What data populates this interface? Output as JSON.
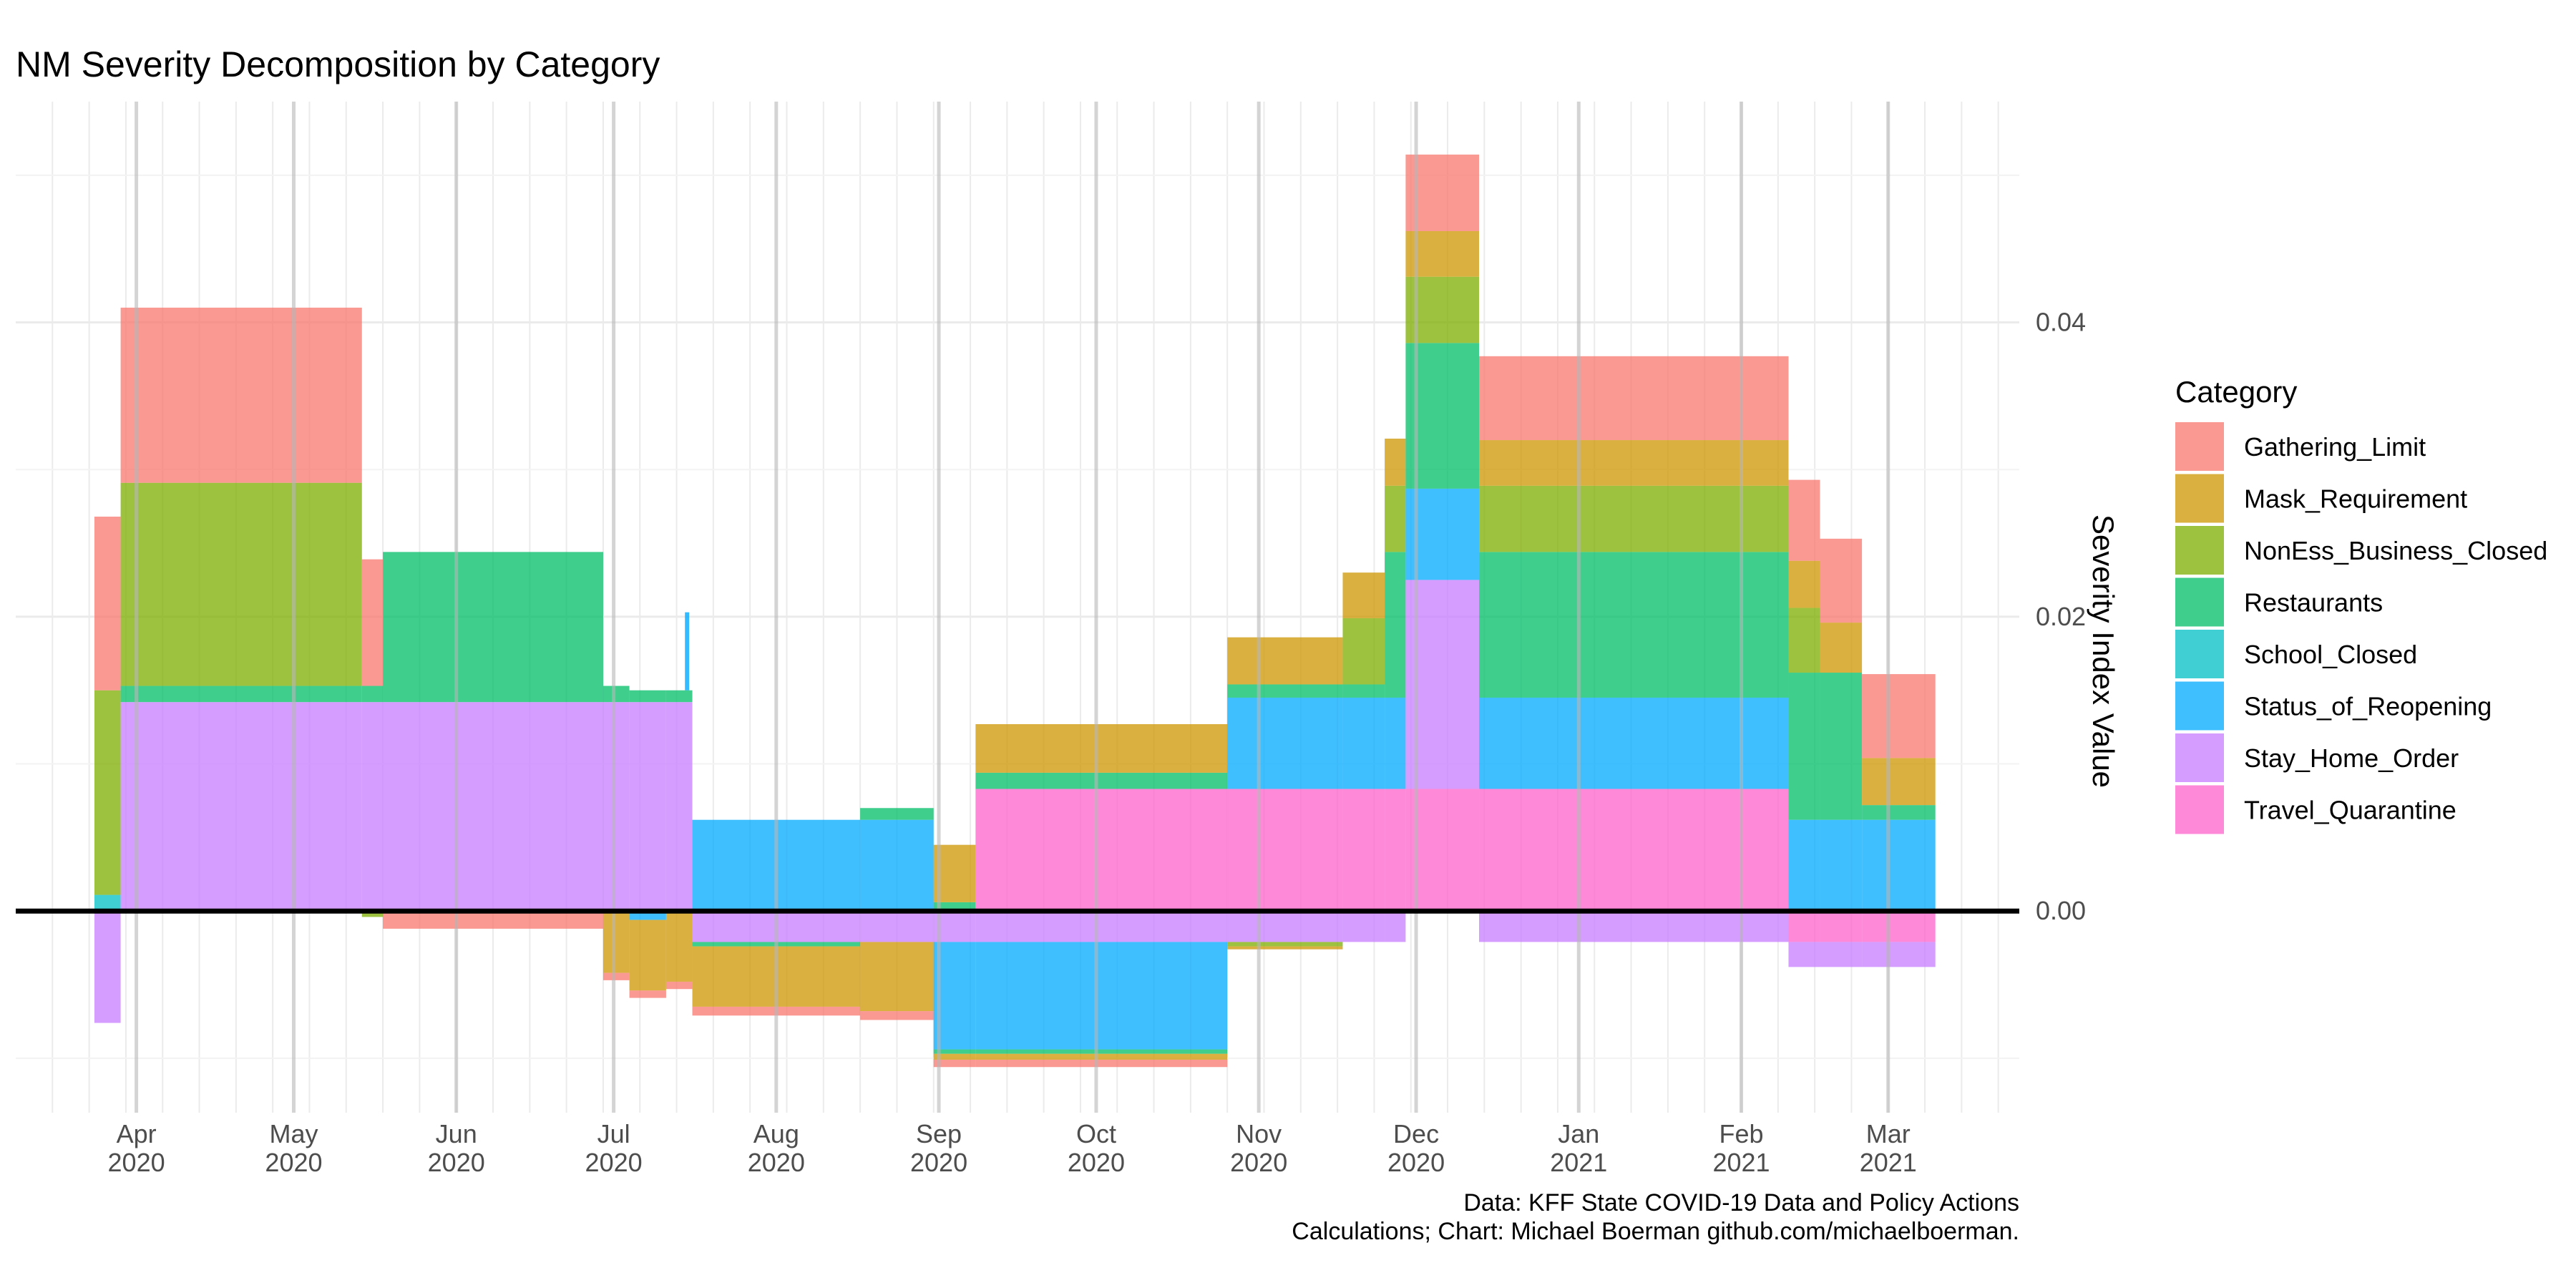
{
  "chart_data": {
    "type": "bar",
    "stacked": true,
    "diverging": true,
    "title": "NM Severity Decomposition by Category",
    "ylabel": "Severity Index Value",
    "xlabel": "",
    "y_axis_position": "right",
    "ylim": [
      -0.0137,
      0.055
    ],
    "yticks": [
      0.0,
      0.02,
      0.04
    ],
    "ytick_labels": [
      "0.00",
      "0.02",
      "0.04"
    ],
    "xlim": [
      "2020-03-09",
      "2021-03-26"
    ],
    "xticks": [
      {
        "date": "2020-04-01",
        "month": "Apr",
        "year": "2020"
      },
      {
        "date": "2020-05-01",
        "month": "May",
        "year": "2020"
      },
      {
        "date": "2020-06-01",
        "month": "Jun",
        "year": "2020"
      },
      {
        "date": "2020-07-01",
        "month": "Jul",
        "year": "2020"
      },
      {
        "date": "2020-08-01",
        "month": "Aug",
        "year": "2020"
      },
      {
        "date": "2020-09-01",
        "month": "Sep",
        "year": "2020"
      },
      {
        "date": "2020-10-01",
        "month": "Oct",
        "year": "2020"
      },
      {
        "date": "2020-11-01",
        "month": "Nov",
        "year": "2020"
      },
      {
        "date": "2020-12-01",
        "month": "Dec",
        "year": "2020"
      },
      {
        "date": "2021-01-01",
        "month": "Jan",
        "year": "2021"
      },
      {
        "date": "2021-02-01",
        "month": "Feb",
        "year": "2021"
      },
      {
        "date": "2021-03-01",
        "month": "Mar",
        "year": "2021"
      }
    ],
    "grid": true,
    "legend_position": "right",
    "legend_title": "Category",
    "categories": [
      "Gathering_Limit",
      "Mask_Requirement",
      "NonEss_Business_Closed",
      "Restaurants",
      "School_Closed",
      "Status_of_Reopening",
      "Stay_Home_Order",
      "Travel_Quarantine"
    ],
    "colors": {
      "Gathering_Limit": "#F8766D",
      "Mask_Requirement": "#CD9600",
      "NonEss_Business_Closed": "#7CAE00",
      "Restaurants": "#00BE67",
      "School_Closed": "#00BFC4",
      "Status_of_Reopening": "#00A9FF",
      "Stay_Home_Order": "#C77CFF",
      "Travel_Quarantine": "#FF61CC"
    },
    "periods": [
      {
        "start": "2020-03-24",
        "end": "2020-03-29",
        "values": {
          "School_Closed": 0.0011,
          "NonEss_Business_Closed": 0.0139,
          "Gathering_Limit": 0.0118,
          "Stay_Home_Order": -0.0076
        }
      },
      {
        "start": "2020-03-29",
        "end": "2020-05-14",
        "values": {
          "Stay_Home_Order": 0.0142,
          "Restaurants": 0.0011,
          "NonEss_Business_Closed": 0.0138,
          "Gathering_Limit": 0.0119
        }
      },
      {
        "start": "2020-05-14",
        "end": "2020-05-18",
        "values": {
          "Stay_Home_Order": 0.0142,
          "Restaurants": 0.0011,
          "Gathering_Limit": 0.0086,
          "NonEss_Business_Closed": -0.0004
        }
      },
      {
        "start": "2020-05-18",
        "end": "2020-06-29",
        "values": {
          "Stay_Home_Order": 0.0142,
          "Restaurants": 0.0102,
          "Gathering_Limit": -0.0012
        }
      },
      {
        "start": "2020-06-29",
        "end": "2020-07-04",
        "values": {
          "Stay_Home_Order": 0.0142,
          "Restaurants": 0.0011,
          "Mask_Requirement": -0.0042,
          "Gathering_Limit": -0.0005
        }
      },
      {
        "start": "2020-07-04",
        "end": "2020-07-11",
        "values": {
          "Stay_Home_Order": 0.0142,
          "Restaurants": 0.0008,
          "Status_of_Reopening": -0.0006,
          "Mask_Requirement": -0.0048,
          "Gathering_Limit": -0.0005
        }
      },
      {
        "start": "2020-07-11",
        "end": "2020-07-16",
        "values": {
          "Stay_Home_Order": 0.0142,
          "Restaurants": 0.0008,
          "Mask_Requirement": -0.0048,
          "Gathering_Limit": -0.0005
        }
      },
      {
        "start": "2020-07-16",
        "end": "2020-08-17",
        "values": {
          "Status_of_Reopening": 0.0062,
          "Stay_Home_Order": -0.0021,
          "Restaurants": -0.0003,
          "Mask_Requirement": -0.0041,
          "Gathering_Limit": -0.0006
        }
      },
      {
        "start": "2020-08-17",
        "end": "2020-08-31",
        "values": {
          "Status_of_Reopening": 0.0062,
          "Restaurants": 0.0008,
          "Stay_Home_Order": -0.0021,
          "Mask_Requirement": -0.0047,
          "Gathering_Limit": -0.0006
        }
      },
      {
        "start": "2020-08-31",
        "end": "2020-09-08",
        "values": {
          "Restaurants": 0.0006,
          "Mask_Requirement": 0.0039,
          "Stay_Home_Order": -0.0021,
          "Status_of_Reopening": -0.0073,
          "Restaurants_neg": -0.0003,
          "Mask_Requirement_neg": -0.0004,
          "Gathering_Limit": -0.0005
        }
      },
      {
        "start": "2020-09-08",
        "end": "2020-10-26",
        "values": {
          "Travel_Quarantine": 0.0083,
          "Restaurants": 0.0011,
          "Mask_Requirement": 0.0033,
          "Stay_Home_Order": -0.0021,
          "Status_of_Reopening": -0.0073,
          "Restaurants_neg": -0.0003,
          "Mask_Requirement_neg": -0.0004,
          "Gathering_Limit": -0.0005
        }
      },
      {
        "start": "2020-10-26",
        "end": "2020-11-17",
        "values": {
          "Travel_Quarantine": 0.0083,
          "Status_of_Reopening": 0.0062,
          "Restaurants": 0.0009,
          "Mask_Requirement": 0.0032,
          "Stay_Home_Order": -0.0021,
          "NonEss_Business_Closed": -0.0003,
          "Mask_Requirement_neg": -0.0002
        }
      },
      {
        "start": "2020-11-17",
        "end": "2020-11-25",
        "values": {
          "Travel_Quarantine": 0.0083,
          "Status_of_Reopening": 0.0062,
          "Restaurants": 0.0009,
          "NonEss_Business_Closed": 0.0045,
          "Mask_Requirement": 0.0031,
          "Stay_Home_Order": -0.0021
        }
      },
      {
        "start": "2020-11-25",
        "end": "2020-11-29",
        "values": {
          "Travel_Quarantine": 0.0083,
          "Status_of_Reopening": 0.0062,
          "Restaurants": 0.0099,
          "NonEss_Business_Closed": 0.0045,
          "Mask_Requirement": 0.0032,
          "Stay_Home_Order": -0.0021
        }
      },
      {
        "start": "2020-11-29",
        "end": "2020-12-13",
        "values": {
          "Travel_Quarantine": 0.0083,
          "Stay_Home_Order": 0.0142,
          "Status_of_Reopening": 0.0062,
          "Restaurants": 0.0099,
          "NonEss_Business_Closed": 0.0045,
          "Mask_Requirement": 0.0031,
          "Gathering_Limit": 0.0052
        }
      },
      {
        "start": "2020-12-13",
        "end": "2021-02-10",
        "values": {
          "Travel_Quarantine": 0.0083,
          "Status_of_Reopening": 0.0062,
          "Restaurants": 0.0099,
          "NonEss_Business_Closed": 0.0045,
          "Mask_Requirement": 0.0031,
          "Gathering_Limit": 0.0057,
          "Stay_Home_Order": -0.0021
        }
      },
      {
        "start": "2021-02-10",
        "end": "2021-02-16",
        "values": {
          "Status_of_Reopening": 0.0062,
          "Restaurants": 0.01,
          "NonEss_Business_Closed": 0.0044,
          "Mask_Requirement": 0.0032,
          "Gathering_Limit": 0.0055,
          "Travel_Quarantine": -0.0021,
          "Stay_Home_Order": -0.0017
        }
      },
      {
        "start": "2021-02-16",
        "end": "2021-02-24",
        "values": {
          "Status_of_Reopening": 0.0062,
          "Restaurants": 0.01,
          "Mask_Requirement": 0.0034,
          "Gathering_Limit": 0.0057,
          "Travel_Quarantine": -0.0021,
          "Stay_Home_Order": -0.0017
        }
      },
      {
        "start": "2021-02-24",
        "end": "2021-03-10",
        "values": {
          "Status_of_Reopening": 0.0062,
          "Restaurants": 0.001,
          "Mask_Requirement": 0.0032,
          "Gathering_Limit": 0.0057,
          "Travel_Quarantine": -0.0021,
          "Stay_Home_Order": -0.0017
        }
      }
    ],
    "spikes": [
      {
        "date": "2020-07-15",
        "category": "Status_of_Reopening",
        "from": 0.015,
        "to": 0.0203
      }
    ],
    "caption_lines": [
      "Data: KFF State COVID-19 Data and Policy Actions",
      "Calculations; Chart: Michael Boerman github.com/michaelboerman."
    ]
  }
}
